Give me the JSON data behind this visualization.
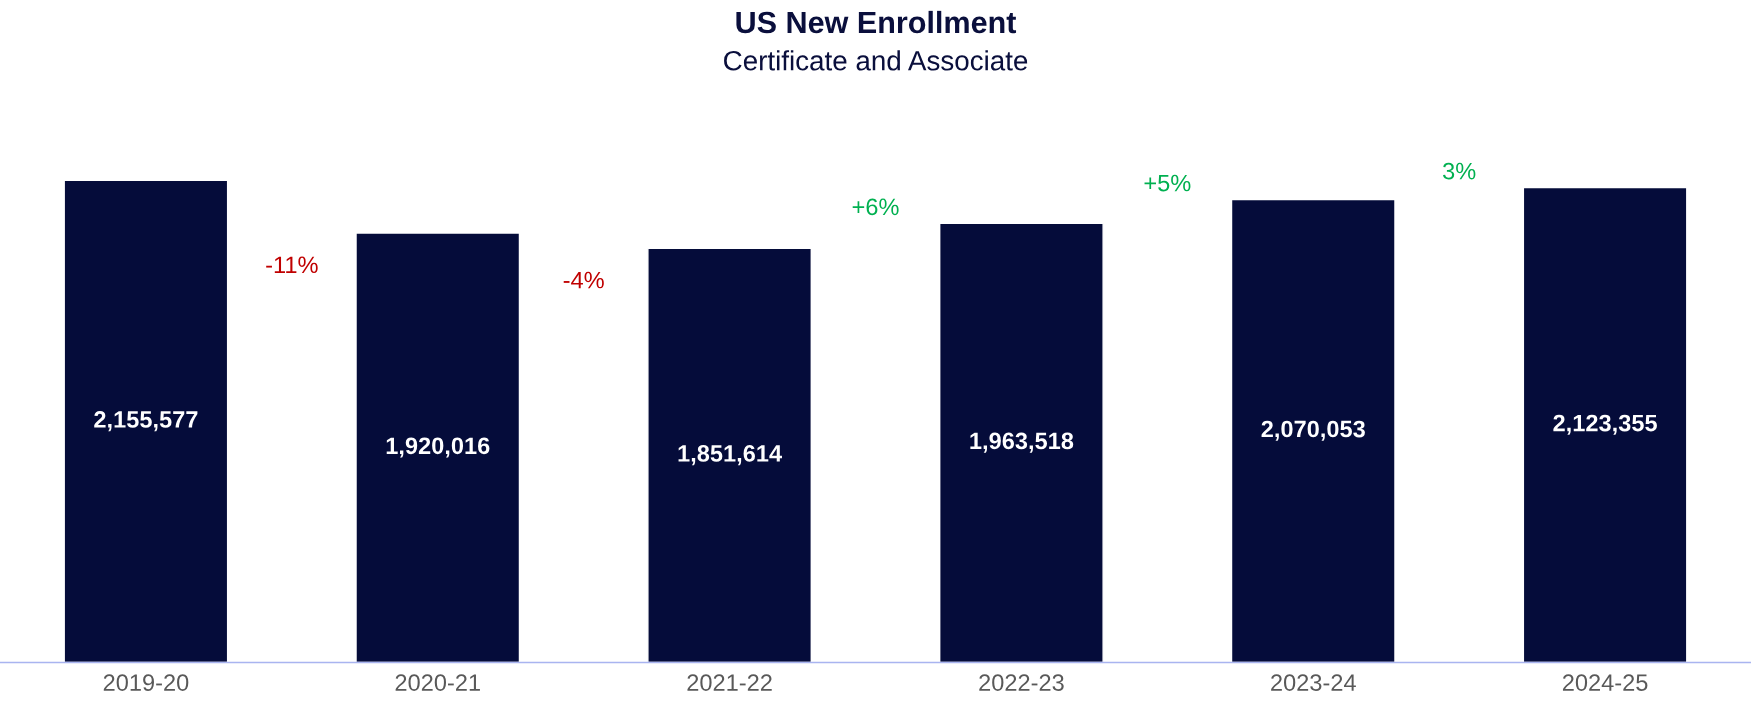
{
  "chart_data": {
    "type": "bar",
    "title": "US New Enrollment",
    "subtitle": "Certificate and Associate",
    "categories": [
      "2019-20",
      "2020-21",
      "2021-22",
      "2022-23",
      "2023-24",
      "2024-25"
    ],
    "values": [
      2155577,
      1920016,
      1851614,
      1963518,
      2070053,
      2123355
    ],
    "value_labels": [
      "2,155,577",
      "1,920,016",
      "1,851,614",
      "1,963,518",
      "2,070,053",
      "2,123,355"
    ],
    "color": "#050c3a",
    "grid": false,
    "annotations": [
      "-11%",
      "-4%",
      "+6%",
      "+5%",
      "3%"
    ]
  }
}
